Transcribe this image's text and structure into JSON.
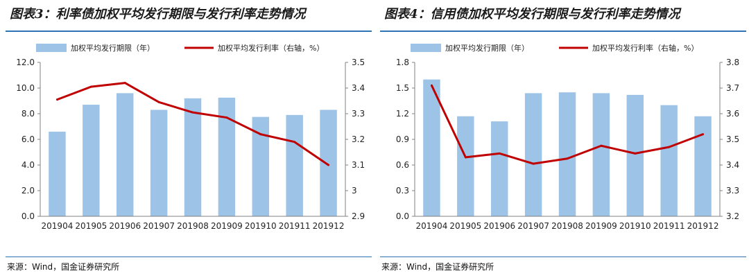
{
  "left": {
    "title": "图表3：利率债加权平均发行期限与发行利率走势情况",
    "source": "来源：Wind，国金证券研究所",
    "chart_data": {
      "type": "bar",
      "categories": [
        "201904",
        "201905",
        "201906",
        "201907",
        "201908",
        "201909",
        "201910",
        "201911",
        "201912"
      ],
      "series": [
        {
          "name": "加权平均发行期限（年）",
          "type": "bar",
          "axis": "left",
          "values": [
            6.6,
            8.7,
            9.6,
            8.3,
            9.2,
            9.25,
            7.75,
            7.9,
            8.3
          ]
        },
        {
          "name": "加权平均发行利率（右轴，%）",
          "type": "line",
          "axis": "right",
          "values": [
            3.355,
            3.405,
            3.42,
            3.345,
            3.305,
            3.285,
            3.22,
            3.19,
            3.1
          ]
        }
      ],
      "ylim": [
        0,
        12
      ],
      "yticks": [
        "0.0",
        "2.0",
        "4.0",
        "6.0",
        "8.0",
        "10.0",
        "12.0"
      ],
      "y2lim": [
        2.9,
        3.5
      ],
      "y2ticks": [
        "2.9",
        "3",
        "3.1",
        "3.2",
        "3.3",
        "3.4",
        "3.5"
      ],
      "legend_position": "top",
      "bar_color": "#9dc3e6",
      "line_color": "#c00000"
    }
  },
  "right": {
    "title": "图表4：信用债加权平均发行期限与发行利率走势情况",
    "source": "来源：Wind，国金证券研究所",
    "chart_data": {
      "type": "bar",
      "categories": [
        "201904",
        "201905",
        "201906",
        "201907",
        "201908",
        "201909",
        "201910",
        "201911",
        "201912"
      ],
      "series": [
        {
          "name": "加权平均发行期限（年）",
          "type": "bar",
          "axis": "left",
          "values": [
            1.6,
            1.17,
            1.11,
            1.44,
            1.45,
            1.44,
            1.42,
            1.3,
            1.17
          ]
        },
        {
          "name": "加权平均发行利率（右轴，%）",
          "type": "line",
          "axis": "right",
          "values": [
            3.71,
            3.43,
            3.445,
            3.405,
            3.425,
            3.475,
            3.445,
            3.47,
            3.52
          ]
        }
      ],
      "ylim": [
        0,
        1.8
      ],
      "yticks": [
        "0.0",
        "0.3",
        "0.6",
        "0.9",
        "1.2",
        "1.5",
        "1.8"
      ],
      "y2lim": [
        3.2,
        3.8
      ],
      "y2ticks": [
        "3.2",
        "3.3",
        "3.4",
        "3.5",
        "3.6",
        "3.7",
        "3.8"
      ],
      "legend_position": "top",
      "bar_color": "#9dc3e6",
      "line_color": "#c00000"
    }
  }
}
